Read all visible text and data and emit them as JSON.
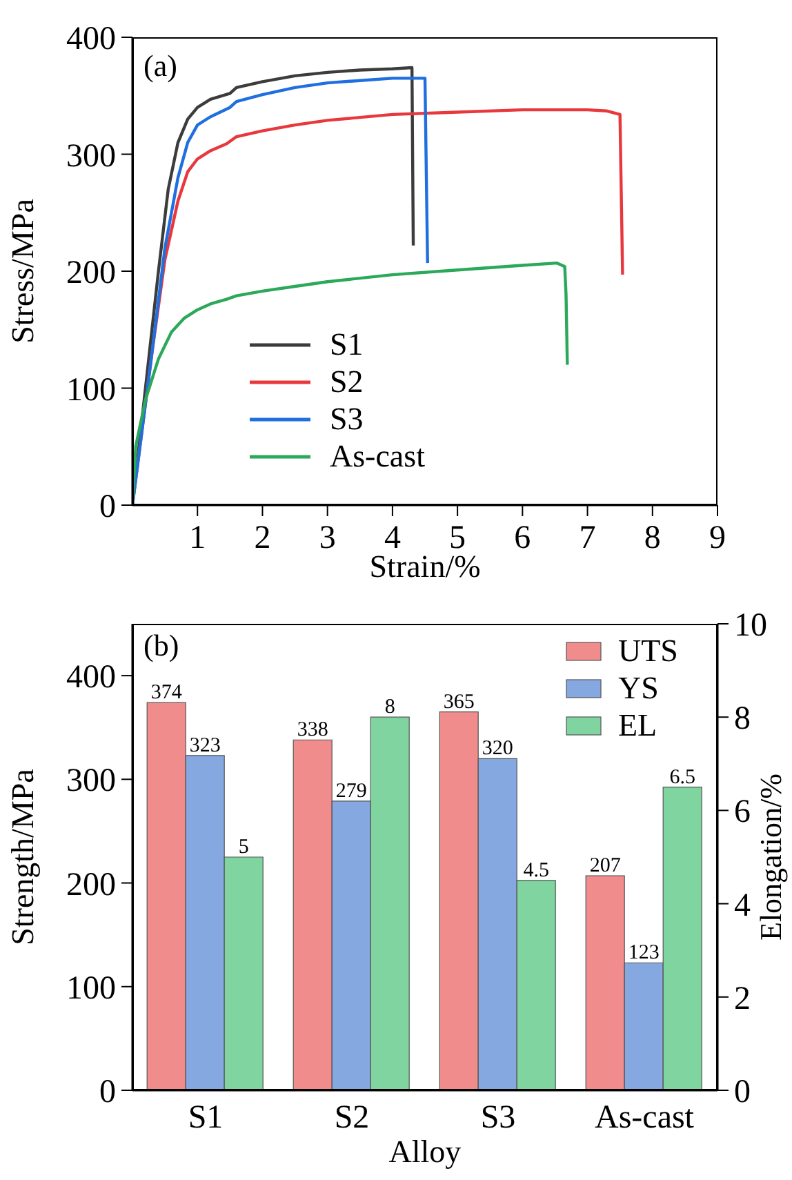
{
  "chart_data": [
    {
      "type": "line",
      "xlabel": "Strain/%",
      "ylabel": "Stress/MPa",
      "annotations": [
        "(a)"
      ],
      "xlim": [
        0,
        9
      ],
      "xticks": [
        1,
        2,
        3,
        4,
        5,
        6,
        7,
        8,
        9
      ],
      "ylim": [
        0,
        400
      ],
      "yticks": [
        0,
        100,
        200,
        300,
        400
      ],
      "legend": "bottom left",
      "grid": false,
      "series": [
        {
          "name": "S1",
          "color": "#3c3c3c",
          "x": [
            0,
            0.2,
            0.4,
            0.55,
            0.7,
            0.85,
            1.0,
            1.2,
            1.5,
            1.6,
            2,
            2.5,
            3,
            3.5,
            4,
            4.3,
            4.32
          ],
          "values": [
            0,
            100,
            200,
            270,
            310,
            330,
            340,
            347,
            352,
            357,
            362,
            367,
            370,
            372,
            373,
            374,
            222
          ]
        },
        {
          "name": "S2",
          "color": "#e8383d",
          "x": [
            0,
            0.3,
            0.5,
            0.7,
            0.85,
            1.0,
            1.2,
            1.45,
            1.6,
            2,
            2.5,
            3,
            4,
            5,
            6,
            7,
            7.3,
            7.5,
            7.54
          ],
          "values": [
            0,
            130,
            210,
            260,
            285,
            296,
            303,
            309,
            315,
            320,
            325,
            329,
            334,
            336,
            338,
            338,
            337,
            334,
            197
          ]
        },
        {
          "name": "S3",
          "color": "#1f6fe0",
          "x": [
            0,
            0.3,
            0.5,
            0.7,
            0.85,
            1.0,
            1.2,
            1.5,
            1.6,
            2,
            2.5,
            3,
            3.5,
            4,
            4.5,
            4.54
          ],
          "values": [
            0,
            130,
            220,
            280,
            310,
            325,
            332,
            340,
            345,
            351,
            357,
            361,
            363,
            365,
            365,
            207
          ]
        },
        {
          "name": "As-cast",
          "color": "#2ba85a",
          "x": [
            0,
            0.05,
            0.2,
            0.4,
            0.6,
            0.8,
            1,
            1.2,
            1.45,
            1.6,
            2,
            2.5,
            3,
            4,
            5,
            6,
            6.53,
            6.65,
            6.67,
            6.69
          ],
          "values": [
            0,
            50,
            90,
            125,
            148,
            160,
            167,
            172,
            176,
            179,
            183,
            187,
            191,
            197,
            201,
            205,
            207,
            204,
            180,
            120
          ]
        }
      ]
    },
    {
      "type": "bar",
      "xlabel": "Alloy",
      "ylabel": "Strength/MPa",
      "y2label": "Elongation/%",
      "annotations": [
        "(b)"
      ],
      "categories": [
        "S1",
        "S2",
        "S3",
        "As-cast"
      ],
      "ylim": [
        0,
        450
      ],
      "yticks": [
        0,
        100,
        200,
        300,
        400
      ],
      "y2lim": [
        0,
        10
      ],
      "y2ticks": [
        0,
        2,
        4,
        6,
        8,
        10
      ],
      "legend": "top right",
      "grid": false,
      "data_labels": true,
      "series": [
        {
          "name": "UTS",
          "color": "#f08c8c",
          "values": [
            374,
            338,
            365,
            207
          ]
        },
        {
          "name": "YS",
          "color": "#85a8e0",
          "values": [
            323,
            279,
            320,
            123
          ]
        },
        {
          "name": "EL",
          "color": "#7fd4a0",
          "axis": "y2",
          "values": [
            5,
            8,
            4.5,
            6.5
          ]
        }
      ]
    }
  ]
}
